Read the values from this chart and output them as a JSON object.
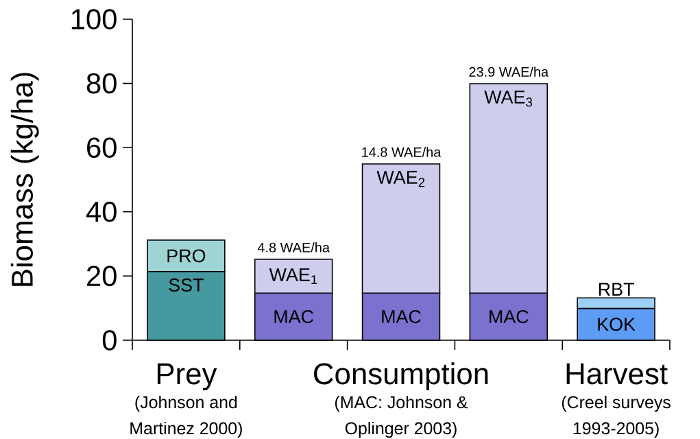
{
  "chart_data": {
    "type": "bar",
    "stacked": true,
    "ylabel": "Biomass (kg/ha)",
    "categories": [
      "Prey",
      null,
      "Consumption",
      null,
      "Harvest"
    ],
    "series": [
      {
        "name": "SST",
        "color": "#46999e",
        "values": [
          21.4,
          null,
          null,
          null,
          null
        ]
      },
      {
        "name": "MAC",
        "color": "#7b72cf",
        "values": [
          null,
          14.7,
          14.7,
          14.7,
          null
        ]
      },
      {
        "name": "KOK",
        "color": "#5c9cf5",
        "values": [
          null,
          null,
          null,
          null,
          9.9
        ]
      },
      {
        "name": "PRO",
        "color": "#9ed4d4",
        "values": [
          9.8,
          null,
          null,
          null,
          null
        ]
      },
      {
        "name": "WAE$_{1}$",
        "color": "#cfcdee",
        "values": [
          null,
          10.5,
          null,
          null,
          null
        ]
      },
      {
        "name": "WAE$_{2}$",
        "color": "#cfcdee",
        "values": [
          null,
          null,
          40.2,
          null,
          null
        ]
      },
      {
        "name": "WAE$_{3}$",
        "color": "#cfcdee",
        "values": [
          null,
          null,
          null,
          65.2,
          null
        ]
      },
      {
        "name": "RBT",
        "color": "#9ecff5",
        "values": [
          null,
          null,
          null,
          null,
          3.3
        ]
      }
    ],
    "ylim": [
      0,
      100
    ],
    "yticks": [
      0,
      20,
      40,
      60,
      80,
      100
    ],
    "annotations": [
      {
        "text": "4.8 WAE/ha",
        "y": 25.2
      },
      {
        "text": "14.8 WAE/ha",
        "y": 54.9
      },
      {
        "text": "23.9 WAE/ha",
        "y": 79.9
      },
      "(Johnson and",
      "Martinez 2000)",
      "(MAC: Johnson &",
      "Oplinger 2003)",
      "(Creel surveys",
      "1993-2005)"
    ]
  }
}
